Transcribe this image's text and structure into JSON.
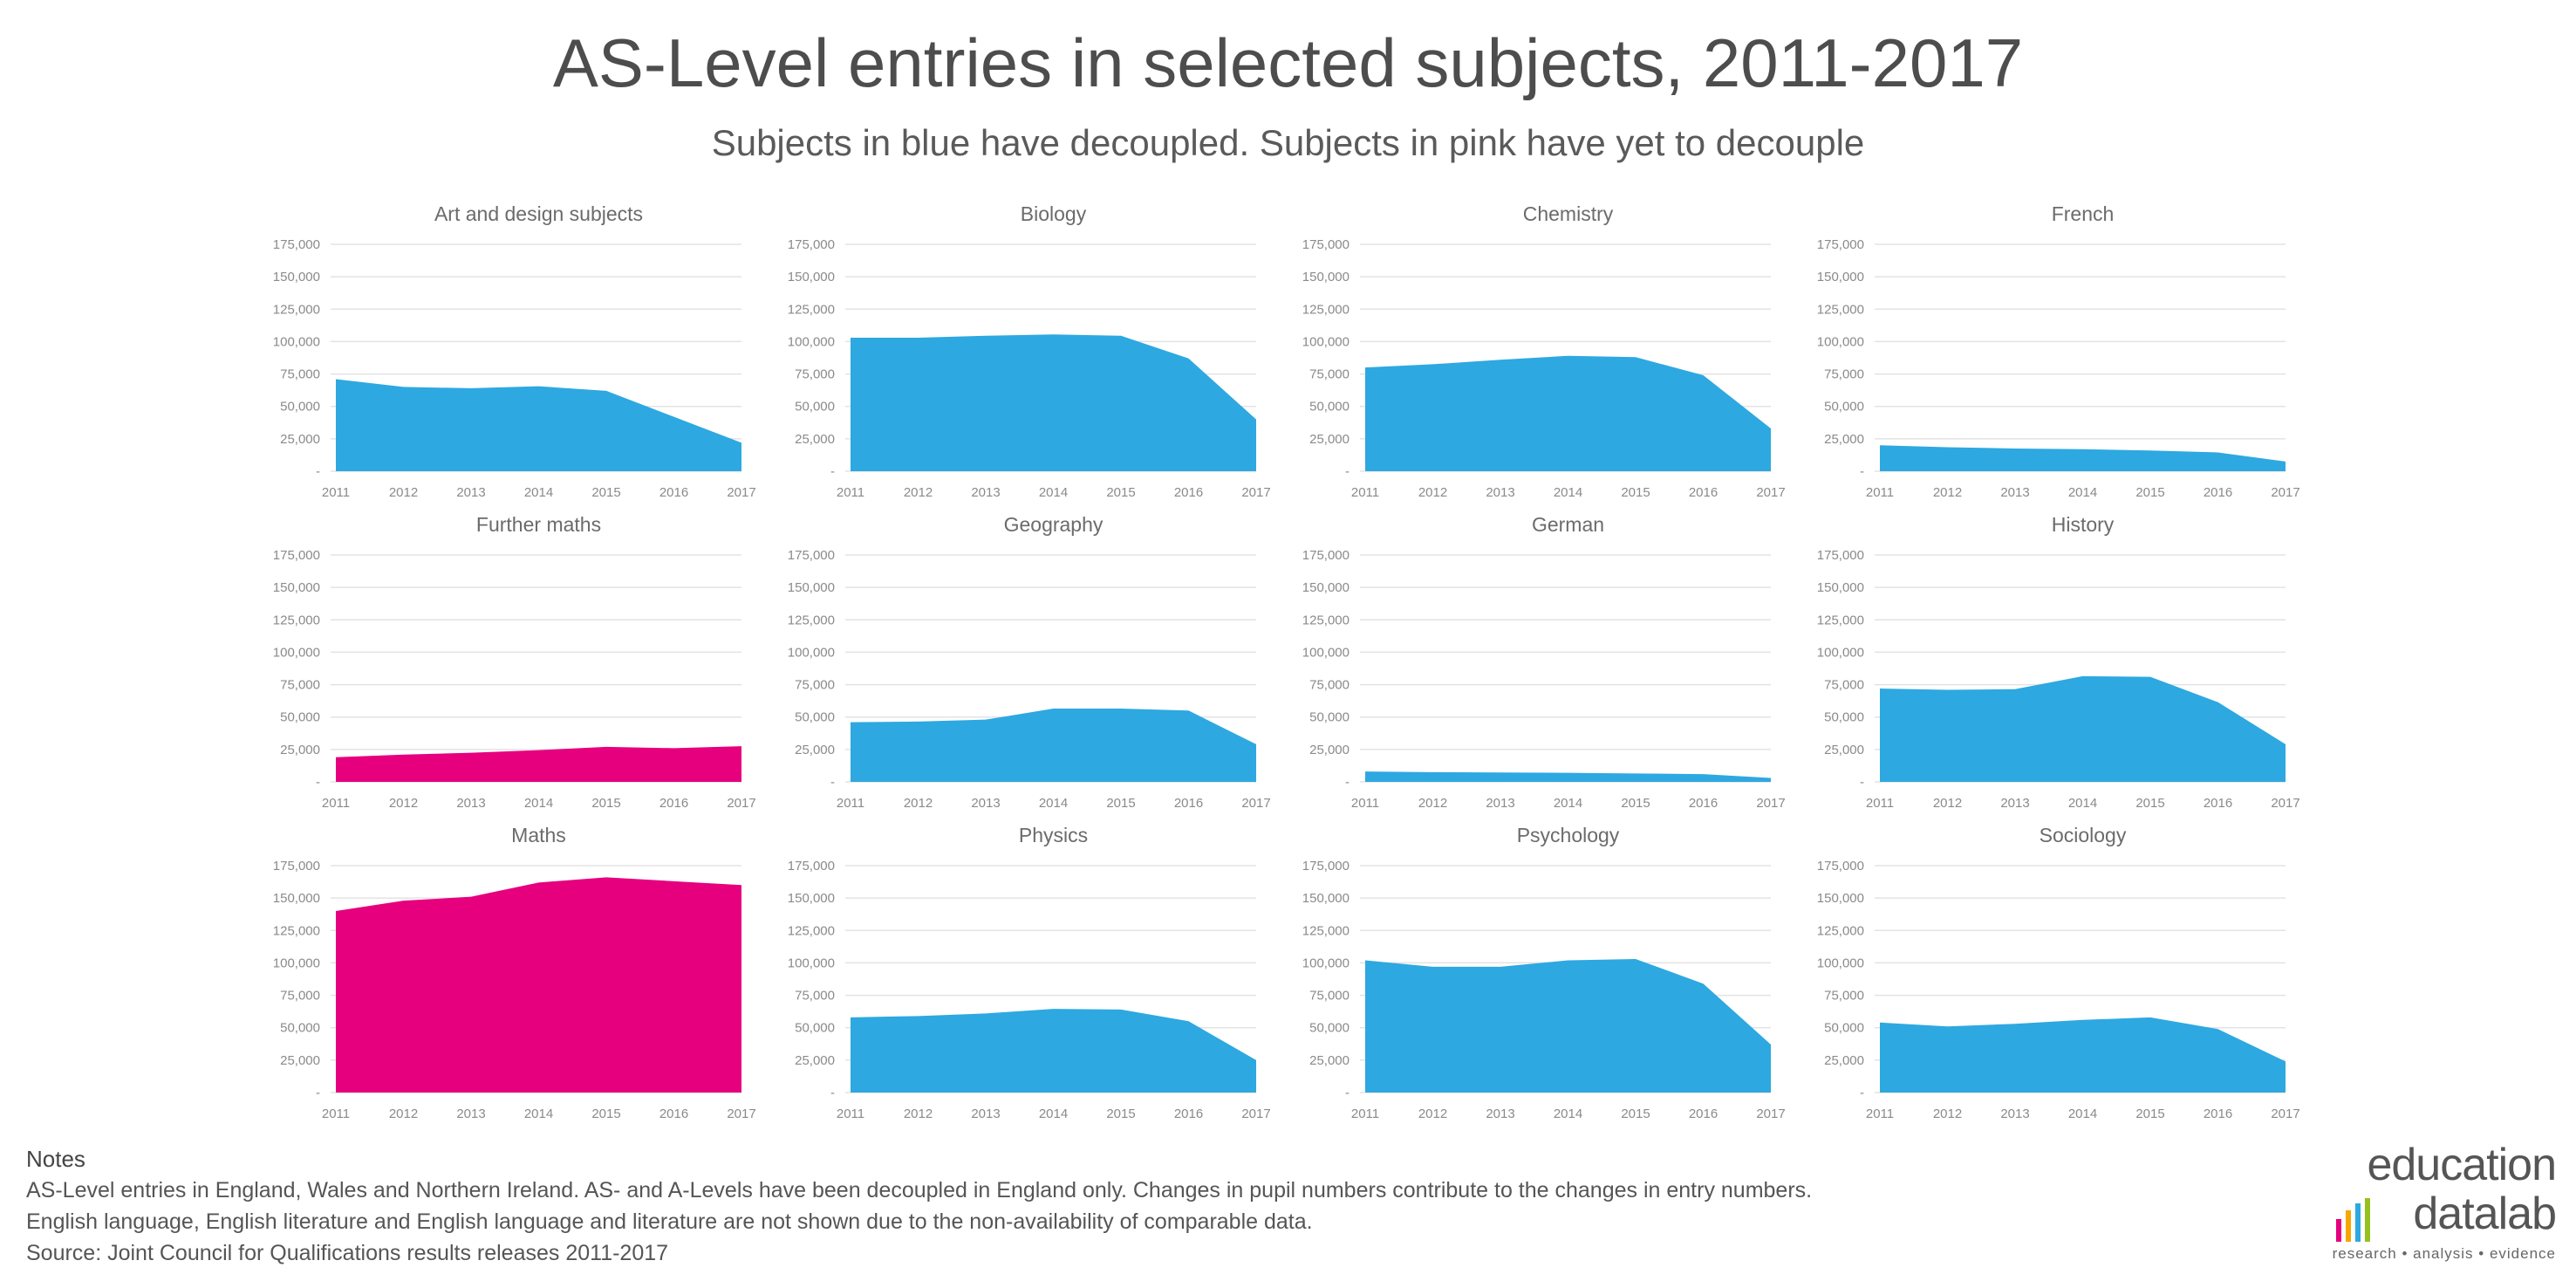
{
  "title": "AS-Level entries in selected subjects, 2011-2017",
  "subtitle": "Subjects in blue have decoupled. Subjects in pink have yet to decouple",
  "colors": {
    "decoupled": "#2ea8e0",
    "not_decoupled": "#e6007e",
    "grid": "#e3e3e3",
    "tick_text": "#8a8a8a"
  },
  "notes": {
    "heading": "Notes",
    "line1": "AS-Level entries in England, Wales and Northern Ireland. AS- and A-Levels have been decoupled in England only. Changes in pupil numbers contribute to the changes in entry numbers.",
    "line2": "English language, English literature and English language and literature are not shown due to the non-availability of comparable data.",
    "line3": "Source: Joint Council for Qualifications results releases 2011-2017"
  },
  "logo": {
    "top": "education",
    "bottom": "datalab",
    "tagline": "research • analysis • evidence",
    "bar_colors": [
      "#e6007e",
      "#f7a600",
      "#2ea8e0",
      "#95c11f"
    ]
  },
  "chart_data": [
    {
      "type": "area",
      "title": "Art and design subjects",
      "status": "decoupled",
      "x": [
        "2011",
        "2012",
        "2013",
        "2014",
        "2015",
        "2016",
        "2017"
      ],
      "y_ticks": [
        "-",
        "25,000",
        "50,000",
        "75,000",
        "100,000",
        "125,000",
        "150,000",
        "175,000"
      ],
      "ylim": [
        0,
        175000
      ],
      "values": [
        71000,
        65000,
        64000,
        65500,
        62000,
        42000,
        22000
      ]
    },
    {
      "type": "area",
      "title": "Biology",
      "status": "decoupled",
      "x": [
        "2011",
        "2012",
        "2013",
        "2014",
        "2015",
        "2016",
        "2017"
      ],
      "y_ticks": [
        "-",
        "25,000",
        "50,000",
        "75,000",
        "100,000",
        "125,000",
        "150,000",
        "175,000"
      ],
      "ylim": [
        0,
        175000
      ],
      "values": [
        103000,
        103000,
        104500,
        105500,
        104500,
        87000,
        40000
      ]
    },
    {
      "type": "area",
      "title": "Chemistry",
      "status": "decoupled",
      "x": [
        "2011",
        "2012",
        "2013",
        "2014",
        "2015",
        "2016",
        "2017"
      ],
      "y_ticks": [
        "-",
        "25,000",
        "50,000",
        "75,000",
        "100,000",
        "125,000",
        "150,000",
        "175,000"
      ],
      "ylim": [
        0,
        175000
      ],
      "values": [
        80000,
        82500,
        86000,
        89000,
        88000,
        74000,
        33000
      ]
    },
    {
      "type": "area",
      "title": "French",
      "status": "decoupled",
      "x": [
        "2011",
        "2012",
        "2013",
        "2014",
        "2015",
        "2016",
        "2017"
      ],
      "y_ticks": [
        "-",
        "25,000",
        "50,000",
        "75,000",
        "100,000",
        "125,000",
        "150,000",
        "175,000"
      ],
      "ylim": [
        0,
        175000
      ],
      "values": [
        20000,
        18500,
        17500,
        17000,
        16000,
        14500,
        7500
      ]
    },
    {
      "type": "area",
      "title": "Further maths",
      "status": "not_decoupled",
      "x": [
        "2011",
        "2012",
        "2013",
        "2014",
        "2015",
        "2016",
        "2017"
      ],
      "y_ticks": [
        "-",
        "25,000",
        "50,000",
        "75,000",
        "100,000",
        "125,000",
        "150,000",
        "175,000"
      ],
      "ylim": [
        0,
        175000
      ],
      "values": [
        19000,
        21000,
        22500,
        24500,
        27000,
        26000,
        27500
      ]
    },
    {
      "type": "area",
      "title": "Geography",
      "status": "decoupled",
      "x": [
        "2011",
        "2012",
        "2013",
        "2014",
        "2015",
        "2016",
        "2017"
      ],
      "y_ticks": [
        "-",
        "25,000",
        "50,000",
        "75,000",
        "100,000",
        "125,000",
        "150,000",
        "175,000"
      ],
      "ylim": [
        0,
        175000
      ],
      "values": [
        46000,
        46500,
        48000,
        56500,
        56500,
        55000,
        29000
      ]
    },
    {
      "type": "area",
      "title": "German",
      "status": "decoupled",
      "x": [
        "2011",
        "2012",
        "2013",
        "2014",
        "2015",
        "2016",
        "2017"
      ],
      "y_ticks": [
        "-",
        "25,000",
        "50,000",
        "75,000",
        "100,000",
        "125,000",
        "150,000",
        "175,000"
      ],
      "ylim": [
        0,
        175000
      ],
      "values": [
        8000,
        7500,
        7200,
        7000,
        6500,
        6000,
        3000
      ]
    },
    {
      "type": "area",
      "title": "History",
      "status": "decoupled",
      "x": [
        "2011",
        "2012",
        "2013",
        "2014",
        "2015",
        "2016",
        "2017"
      ],
      "y_ticks": [
        "-",
        "25,000",
        "50,000",
        "75,000",
        "100,000",
        "125,000",
        "150,000",
        "175,000"
      ],
      "ylim": [
        0,
        175000
      ],
      "values": [
        72000,
        71000,
        71500,
        81500,
        81000,
        61500,
        29000
      ]
    },
    {
      "type": "area",
      "title": "Maths",
      "status": "not_decoupled",
      "x": [
        "2011",
        "2012",
        "2013",
        "2014",
        "2015",
        "2016",
        "2017"
      ],
      "y_ticks": [
        "-",
        "25,000",
        "50,000",
        "75,000",
        "100,000",
        "125,000",
        "150,000",
        "175,000"
      ],
      "ylim": [
        0,
        175000
      ],
      "values": [
        140000,
        148000,
        151000,
        162000,
        166000,
        163000,
        160000
      ]
    },
    {
      "type": "area",
      "title": "Physics",
      "status": "decoupled",
      "x": [
        "2011",
        "2012",
        "2013",
        "2014",
        "2015",
        "2016",
        "2017"
      ],
      "y_ticks": [
        "-",
        "25,000",
        "50,000",
        "75,000",
        "100,000",
        "125,000",
        "150,000",
        "175,000"
      ],
      "ylim": [
        0,
        175000
      ],
      "values": [
        58000,
        59000,
        61000,
        64500,
        64000,
        55000,
        25000
      ]
    },
    {
      "type": "area",
      "title": "Psychology",
      "status": "decoupled",
      "x": [
        "2011",
        "2012",
        "2013",
        "2014",
        "2015",
        "2016",
        "2017"
      ],
      "y_ticks": [
        "-",
        "25,000",
        "50,000",
        "75,000",
        "100,000",
        "125,000",
        "150,000",
        "175,000"
      ],
      "ylim": [
        0,
        175000
      ],
      "values": [
        102000,
        97000,
        97000,
        102000,
        103000,
        84000,
        37000
      ]
    },
    {
      "type": "area",
      "title": "Sociology",
      "status": "decoupled",
      "x": [
        "2011",
        "2012",
        "2013",
        "2014",
        "2015",
        "2016",
        "2017"
      ],
      "y_ticks": [
        "-",
        "25,000",
        "50,000",
        "75,000",
        "100,000",
        "125,000",
        "150,000",
        "175,000"
      ],
      "ylim": [
        0,
        175000
      ],
      "values": [
        54000,
        51000,
        53000,
        56000,
        58000,
        49000,
        24000
      ]
    }
  ]
}
